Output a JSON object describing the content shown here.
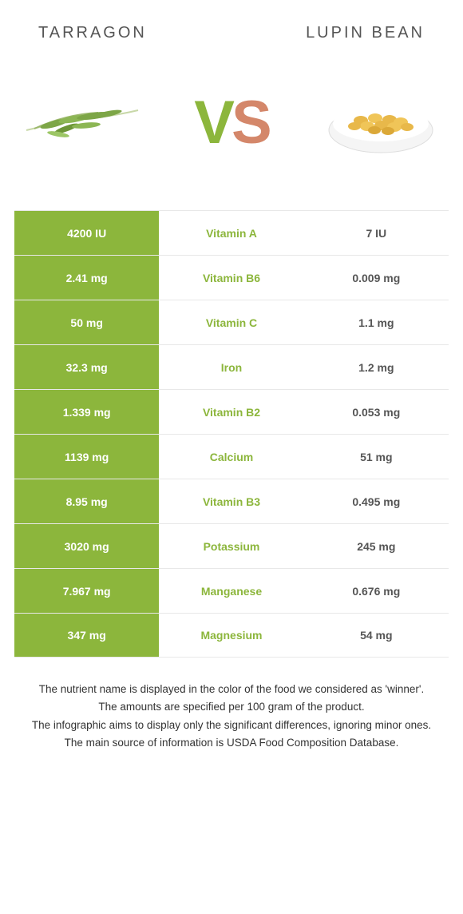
{
  "header": {
    "left": "TARRAGON",
    "right": "LUPIN BEAN"
  },
  "vs": {
    "v": "V",
    "s": "S"
  },
  "colors": {
    "green": "#8cb63c",
    "orange": "#d4876a",
    "text": "#555555",
    "border": "#e8e8e8",
    "bg": "#ffffff"
  },
  "table": {
    "rows": [
      {
        "left": "4200 IU",
        "nutrient": "Vitamin A",
        "right": "7 IU",
        "winner": "left"
      },
      {
        "left": "2.41 mg",
        "nutrient": "Vitamin B6",
        "right": "0.009 mg",
        "winner": "left"
      },
      {
        "left": "50 mg",
        "nutrient": "Vitamin C",
        "right": "1.1 mg",
        "winner": "left"
      },
      {
        "left": "32.3 mg",
        "nutrient": "Iron",
        "right": "1.2 mg",
        "winner": "left"
      },
      {
        "left": "1.339 mg",
        "nutrient": "Vitamin B2",
        "right": "0.053 mg",
        "winner": "left"
      },
      {
        "left": "1139 mg",
        "nutrient": "Calcium",
        "right": "51 mg",
        "winner": "left"
      },
      {
        "left": "8.95 mg",
        "nutrient": "Vitamin B3",
        "right": "0.495 mg",
        "winner": "left"
      },
      {
        "left": "3020 mg",
        "nutrient": "Potassium",
        "right": "245 mg",
        "winner": "left"
      },
      {
        "left": "7.967 mg",
        "nutrient": "Manganese",
        "right": "0.676 mg",
        "winner": "left"
      },
      {
        "left": "347 mg",
        "nutrient": "Magnesium",
        "right": "54 mg",
        "winner": "left"
      }
    ]
  },
  "footer": {
    "line1": "The nutrient name is displayed in the color of the food we considered as 'winner'.",
    "line2": "The amounts are specified per 100 gram of the product.",
    "line3": "The infographic aims to display only the significant differences, ignoring minor ones.",
    "line4": "The main source of information is USDA Food Composition Database."
  }
}
